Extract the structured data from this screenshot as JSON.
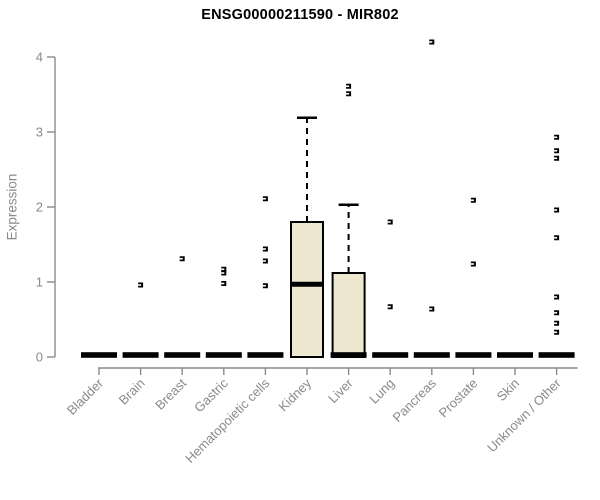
{
  "title": "ENSG00000211590 - MIR802",
  "colors": {
    "background": "#FFFFFF",
    "box_fill": "#EDE8CF",
    "box_stroke": "#000000",
    "axis_gray": "#8A8A8A",
    "title_color": "#000000"
  },
  "chart_data": {
    "type": "boxplot",
    "title": "ENSG00000211590 - MIR802",
    "xlabel": "",
    "ylabel": "Expression",
    "ylim": [
      0,
      4
    ],
    "yticks": [
      0,
      1,
      2,
      3,
      4
    ],
    "grid": false,
    "legend": null,
    "categories": [
      "Bladder",
      "Brain",
      "Breast",
      "Gastric",
      "Hematopoietic cells",
      "Kidney",
      "Liver",
      "Lung",
      "Pancreas",
      "Prostate",
      "Skin",
      "Unknown / Other"
    ],
    "series": [
      {
        "category": "Bladder",
        "q1": 0,
        "median": 0,
        "q3": 0,
        "whisker_low": 0,
        "whisker_high": 0,
        "outliers": []
      },
      {
        "category": "Brain",
        "q1": 0,
        "median": 0,
        "q3": 0,
        "whisker_low": 0,
        "whisker_high": 0,
        "outliers": [
          0.96
        ]
      },
      {
        "category": "Breast",
        "q1": 0,
        "median": 0,
        "q3": 0,
        "whisker_low": 0,
        "whisker_high": 0,
        "outliers": [
          1.31
        ]
      },
      {
        "category": "Gastric",
        "q1": 0,
        "median": 0,
        "q3": 0,
        "whisker_low": 0,
        "whisker_high": 0,
        "outliers": [
          1.17,
          1.12,
          0.98
        ]
      },
      {
        "category": "Hematopoietic cells",
        "q1": 0,
        "median": 0,
        "q3": 0,
        "whisker_low": 0,
        "whisker_high": 0,
        "outliers": [
          2.11,
          1.44,
          1.28,
          0.95
        ]
      },
      {
        "category": "Kidney",
        "q1": 0,
        "median": 0.97,
        "q3": 1.8,
        "whisker_low": 0,
        "whisker_high": 3.19,
        "outliers": []
      },
      {
        "category": "Liver",
        "q1": 0,
        "median": 0,
        "q3": 1.12,
        "whisker_low": 0,
        "whisker_high": 2.03,
        "outliers": [
          3.61,
          3.51
        ]
      },
      {
        "category": "Lung",
        "q1": 0,
        "median": 0,
        "q3": 0,
        "whisker_low": 0,
        "whisker_high": 0,
        "outliers": [
          1.8,
          0.67
        ]
      },
      {
        "category": "Pancreas",
        "q1": 0,
        "median": 0,
        "q3": 0,
        "whisker_low": 0,
        "whisker_high": 0,
        "outliers": [
          4.2,
          0.64
        ]
      },
      {
        "category": "Prostate",
        "q1": 0,
        "median": 0,
        "q3": 0,
        "whisker_low": 0,
        "whisker_high": 0,
        "outliers": [
          2.09,
          1.24
        ]
      },
      {
        "category": "Skin",
        "q1": 0,
        "median": 0,
        "q3": 0,
        "whisker_low": 0,
        "whisker_high": 0,
        "outliers": []
      },
      {
        "category": "Unknown / Other",
        "q1": 0,
        "median": 0,
        "q3": 0,
        "whisker_low": 0,
        "whisker_high": 0,
        "outliers": [
          2.93,
          2.75,
          2.65,
          1.96,
          1.59,
          0.8,
          0.59,
          0.45,
          0.33
        ]
      }
    ]
  }
}
